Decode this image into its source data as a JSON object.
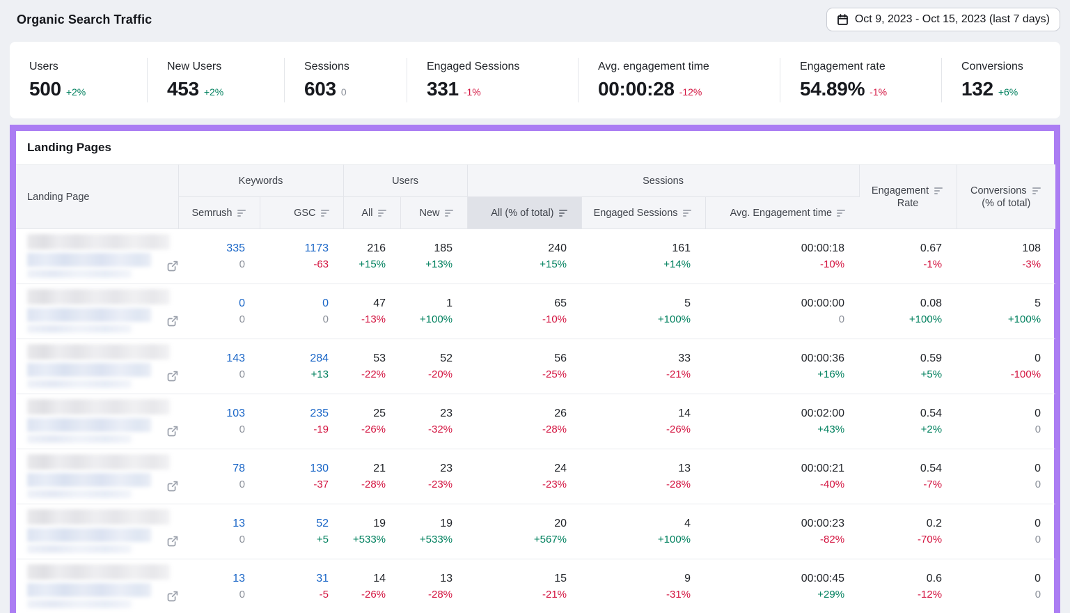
{
  "page": {
    "title": "Organic Search Traffic",
    "date_range": "Oct 9, 2023 - Oct 15, 2023 (last 7 days)"
  },
  "colors": {
    "accent_border": "#ab7df3",
    "positive": "#00805e",
    "negative": "#d3133f",
    "neutral": "#8a8f99",
    "link": "#1a66c7"
  },
  "stats": [
    {
      "label": "Users",
      "value": "500",
      "delta": "+2%",
      "trend": "up"
    },
    {
      "label": "New Users",
      "value": "453",
      "delta": "+2%",
      "trend": "up"
    },
    {
      "label": "Sessions",
      "value": "603",
      "delta": "0",
      "trend": "flat"
    },
    {
      "label": "Engaged Sessions",
      "value": "331",
      "delta": "-1%",
      "trend": "down"
    },
    {
      "label": "Avg. engagement time",
      "value": "00:00:28",
      "delta": "-12%",
      "trend": "down"
    },
    {
      "label": "Engagement rate",
      "value": "54.89%",
      "delta": "-1%",
      "trend": "down"
    },
    {
      "label": "Conversions",
      "value": "132",
      "delta": "+6%",
      "trend": "up"
    }
  ],
  "table": {
    "title": "Landing Pages",
    "header": {
      "landing_page": "Landing Page",
      "groups": {
        "keywords": "Keywords",
        "users": "Users",
        "sessions": "Sessions"
      },
      "sub": {
        "semrush": "Semrush",
        "gsc": "GSC",
        "users_all": "All",
        "users_new": "New",
        "sessions_all": "All (% of total)",
        "engaged_sessions": "Engaged Sessions",
        "avg_engagement_time": "Avg. Engagement time"
      },
      "engagement_rate_line1": "Engagement",
      "engagement_rate_line2": "Rate",
      "conversions_line1": "Conversions",
      "conversions_line2": "(% of total)",
      "active_sort_column": "sessions_all"
    },
    "rows": [
      {
        "cells": {
          "semrush": {
            "v": "335",
            "d": "0",
            "t": "flat"
          },
          "gsc": {
            "v": "1173",
            "d": "-63",
            "t": "down"
          },
          "users_all": {
            "v": "216",
            "d": "+15%",
            "t": "up"
          },
          "users_new": {
            "v": "185",
            "d": "+13%",
            "t": "up"
          },
          "sessions_all": {
            "v": "240",
            "d": "+15%",
            "t": "up"
          },
          "engaged_sessions": {
            "v": "161",
            "d": "+14%",
            "t": "up"
          },
          "avg_engagement_time": {
            "v": "00:00:18",
            "d": "-10%",
            "t": "down"
          },
          "engagement_rate": {
            "v": "0.67",
            "d": "-1%",
            "t": "down"
          },
          "conversions": {
            "v": "108",
            "d": "-3%",
            "t": "down"
          }
        }
      },
      {
        "cells": {
          "semrush": {
            "v": "0",
            "d": "0",
            "t": "flat"
          },
          "gsc": {
            "v": "0",
            "d": "0",
            "t": "flat"
          },
          "users_all": {
            "v": "47",
            "d": "-13%",
            "t": "down"
          },
          "users_new": {
            "v": "1",
            "d": "+100%",
            "t": "up"
          },
          "sessions_all": {
            "v": "65",
            "d": "-10%",
            "t": "down"
          },
          "engaged_sessions": {
            "v": "5",
            "d": "+100%",
            "t": "up"
          },
          "avg_engagement_time": {
            "v": "00:00:00",
            "d": "0",
            "t": "flat"
          },
          "engagement_rate": {
            "v": "0.08",
            "d": "+100%",
            "t": "up"
          },
          "conversions": {
            "v": "5",
            "d": "+100%",
            "t": "up"
          }
        }
      },
      {
        "cells": {
          "semrush": {
            "v": "143",
            "d": "0",
            "t": "flat"
          },
          "gsc": {
            "v": "284",
            "d": "+13",
            "t": "up"
          },
          "users_all": {
            "v": "53",
            "d": "-22%",
            "t": "down"
          },
          "users_new": {
            "v": "52",
            "d": "-20%",
            "t": "down"
          },
          "sessions_all": {
            "v": "56",
            "d": "-25%",
            "t": "down"
          },
          "engaged_sessions": {
            "v": "33",
            "d": "-21%",
            "t": "down"
          },
          "avg_engagement_time": {
            "v": "00:00:36",
            "d": "+16%",
            "t": "up"
          },
          "engagement_rate": {
            "v": "0.59",
            "d": "+5%",
            "t": "up"
          },
          "conversions": {
            "v": "0",
            "d": "-100%",
            "t": "down"
          }
        }
      },
      {
        "cells": {
          "semrush": {
            "v": "103",
            "d": "0",
            "t": "flat"
          },
          "gsc": {
            "v": "235",
            "d": "-19",
            "t": "down"
          },
          "users_all": {
            "v": "25",
            "d": "-26%",
            "t": "down"
          },
          "users_new": {
            "v": "23",
            "d": "-32%",
            "t": "down"
          },
          "sessions_all": {
            "v": "26",
            "d": "-28%",
            "t": "down"
          },
          "engaged_sessions": {
            "v": "14",
            "d": "-26%",
            "t": "down"
          },
          "avg_engagement_time": {
            "v": "00:02:00",
            "d": "+43%",
            "t": "up"
          },
          "engagement_rate": {
            "v": "0.54",
            "d": "+2%",
            "t": "up"
          },
          "conversions": {
            "v": "0",
            "d": "0",
            "t": "flat"
          }
        }
      },
      {
        "cells": {
          "semrush": {
            "v": "78",
            "d": "0",
            "t": "flat"
          },
          "gsc": {
            "v": "130",
            "d": "-37",
            "t": "down"
          },
          "users_all": {
            "v": "21",
            "d": "-28%",
            "t": "down"
          },
          "users_new": {
            "v": "23",
            "d": "-23%",
            "t": "down"
          },
          "sessions_all": {
            "v": "24",
            "d": "-23%",
            "t": "down"
          },
          "engaged_sessions": {
            "v": "13",
            "d": "-28%",
            "t": "down"
          },
          "avg_engagement_time": {
            "v": "00:00:21",
            "d": "-40%",
            "t": "down"
          },
          "engagement_rate": {
            "v": "0.54",
            "d": "-7%",
            "t": "down"
          },
          "conversions": {
            "v": "0",
            "d": "0",
            "t": "flat"
          }
        }
      },
      {
        "cells": {
          "semrush": {
            "v": "13",
            "d": "0",
            "t": "flat"
          },
          "gsc": {
            "v": "52",
            "d": "+5",
            "t": "up"
          },
          "users_all": {
            "v": "19",
            "d": "+533%",
            "t": "up"
          },
          "users_new": {
            "v": "19",
            "d": "+533%",
            "t": "up"
          },
          "sessions_all": {
            "v": "20",
            "d": "+567%",
            "t": "up"
          },
          "engaged_sessions": {
            "v": "4",
            "d": "+100%",
            "t": "up"
          },
          "avg_engagement_time": {
            "v": "00:00:23",
            "d": "-82%",
            "t": "down"
          },
          "engagement_rate": {
            "v": "0.2",
            "d": "-70%",
            "t": "down"
          },
          "conversions": {
            "v": "0",
            "d": "0",
            "t": "flat"
          }
        }
      },
      {
        "cells": {
          "semrush": {
            "v": "13",
            "d": "0",
            "t": "flat"
          },
          "gsc": {
            "v": "31",
            "d": "-5",
            "t": "down"
          },
          "users_all": {
            "v": "14",
            "d": "-26%",
            "t": "down"
          },
          "users_new": {
            "v": "13",
            "d": "-28%",
            "t": "down"
          },
          "sessions_all": {
            "v": "15",
            "d": "-21%",
            "t": "down"
          },
          "engaged_sessions": {
            "v": "9",
            "d": "-31%",
            "t": "down"
          },
          "avg_engagement_time": {
            "v": "00:00:45",
            "d": "+29%",
            "t": "up"
          },
          "engagement_rate": {
            "v": "0.6",
            "d": "-12%",
            "t": "down"
          },
          "conversions": {
            "v": "0",
            "d": "0",
            "t": "flat"
          }
        }
      }
    ]
  }
}
